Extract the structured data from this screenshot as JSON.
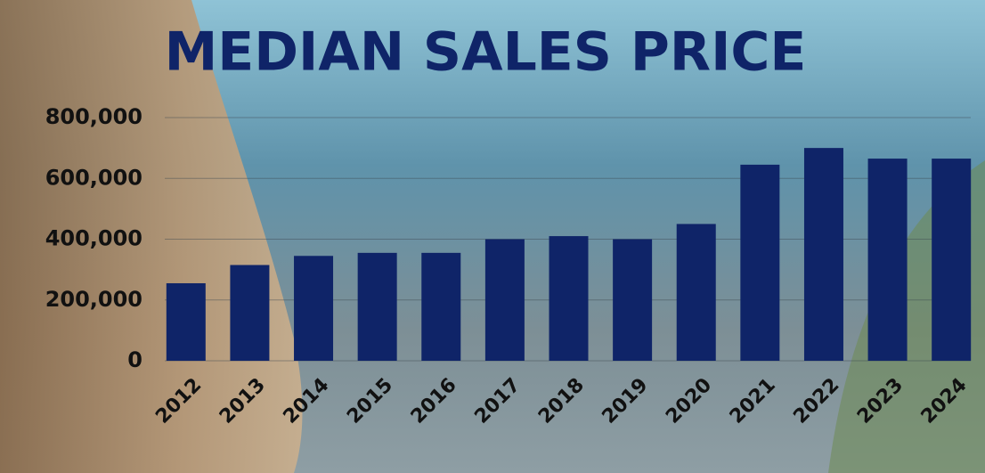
{
  "chart_data": {
    "type": "bar",
    "title": "MEDIAN SALES PRICE",
    "categories": [
      "2012",
      "2013",
      "2014",
      "2015",
      "2016",
      "2017",
      "2018",
      "2019",
      "2020",
      "2021",
      "2022",
      "2023",
      "2024"
    ],
    "values": [
      255000,
      315000,
      345000,
      355000,
      355000,
      400000,
      410000,
      400000,
      450000,
      645000,
      700000,
      665000,
      665000
    ],
    "color": "#0f2468",
    "ylim": [
      0,
      800000
    ],
    "yticks": [
      0,
      {
        "value": 200000,
        "label": "200,000"
      },
      {
        "value": 400000,
        "label": "400,000"
      },
      {
        "value": 600000,
        "label": "600,000"
      },
      {
        "value": 800000,
        "label": "800,000"
      }
    ],
    "grid": true
  }
}
